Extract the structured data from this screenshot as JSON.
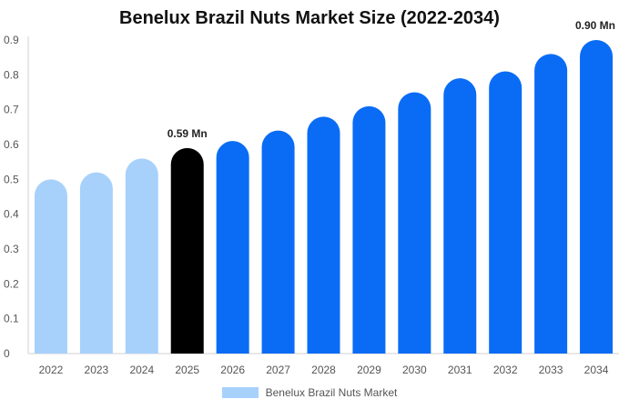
{
  "chart_data": {
    "type": "bar",
    "title": "Benelux Brazil Nuts Market Size (2022-2034)",
    "xlabel": "",
    "ylabel": "",
    "categories": [
      "2022",
      "2023",
      "2024",
      "2025",
      "2026",
      "2027",
      "2028",
      "2029",
      "2030",
      "2031",
      "2032",
      "2033",
      "2034"
    ],
    "series": [
      {
        "name": "Benelux Brazil Nuts Market",
        "values": [
          0.5,
          0.52,
          0.56,
          0.59,
          0.61,
          0.64,
          0.68,
          0.71,
          0.75,
          0.79,
          0.81,
          0.86,
          0.9
        ]
      }
    ],
    "ylim": [
      0,
      0.9
    ],
    "yticks": [
      "0",
      "0.1",
      "0.2",
      "0.3",
      "0.4",
      "0.5",
      "0.6",
      "0.7",
      "0.8",
      "0.9"
    ],
    "annotations": [
      {
        "category": "2025",
        "text": "0.59 Mn"
      },
      {
        "category": "2034",
        "text": "0.90 Mn"
      }
    ],
    "bar_colors": {
      "historical": "#a7d1fb",
      "current": "#000000",
      "forecast": "#0a6cf5"
    },
    "color_groups": [
      "historical",
      "historical",
      "historical",
      "current",
      "forecast",
      "forecast",
      "forecast",
      "forecast",
      "forecast",
      "forecast",
      "forecast",
      "forecast",
      "forecast"
    ],
    "grid": false,
    "legend_position": "bottom",
    "legend_color": "#a7d1fb"
  }
}
